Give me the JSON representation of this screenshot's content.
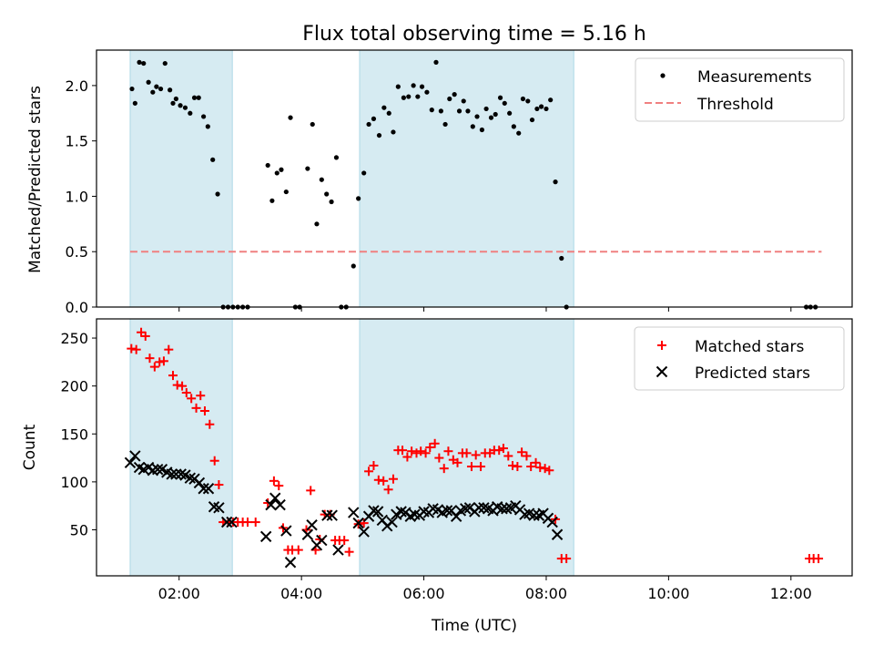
{
  "chart_data": {
    "type": "scatter",
    "title": "Flux total observing time = 5.16 h",
    "xlabel": "Time (UTC)",
    "x_unit": "hours UTC",
    "xlim": [
      0.65,
      13.0
    ],
    "xticks": [
      2,
      4,
      6,
      8,
      10,
      12
    ],
    "xtick_labels": [
      "02:00",
      "04:00",
      "06:00",
      "08:00",
      "10:00",
      "12:00"
    ],
    "shaded_intervals": [
      [
        1.2,
        2.87
      ],
      [
        4.95,
        8.45
      ]
    ],
    "shade_color": "#add8e6",
    "top": {
      "ylabel": "Matched/Predicted stars",
      "ylim": [
        0,
        2.32
      ],
      "yticks": [
        0.0,
        0.5,
        1.0,
        1.5,
        2.0
      ],
      "ytick_labels": [
        "0.0",
        "0.5",
        "1.0",
        "1.5",
        "2.0"
      ],
      "legend_position": "upper right",
      "threshold": {
        "name": "Threshold",
        "value": 0.5,
        "x_range": [
          1.2,
          12.5
        ],
        "color": "#f08080"
      },
      "measurements": {
        "name": "Measurements",
        "color": "#000000",
        "points": [
          [
            1.23,
            1.97
          ],
          [
            1.28,
            1.84
          ],
          [
            1.35,
            2.21
          ],
          [
            1.42,
            2.2
          ],
          [
            1.5,
            2.03
          ],
          [
            1.57,
            1.94
          ],
          [
            1.63,
            1.99
          ],
          [
            1.7,
            1.97
          ],
          [
            1.77,
            2.2
          ],
          [
            1.85,
            1.96
          ],
          [
            1.9,
            1.84
          ],
          [
            1.95,
            1.88
          ],
          [
            2.02,
            1.82
          ],
          [
            2.1,
            1.8
          ],
          [
            2.18,
            1.75
          ],
          [
            2.25,
            1.89
          ],
          [
            2.32,
            1.89
          ],
          [
            2.4,
            1.72
          ],
          [
            2.47,
            1.63
          ],
          [
            2.55,
            1.33
          ],
          [
            2.63,
            1.02
          ],
          [
            2.72,
            0.0
          ],
          [
            2.8,
            0.0
          ],
          [
            2.88,
            0.0
          ],
          [
            2.96,
            0.0
          ],
          [
            3.04,
            0.0
          ],
          [
            3.12,
            0.0
          ],
          [
            3.45,
            1.28
          ],
          [
            3.52,
            0.96
          ],
          [
            3.6,
            1.21
          ],
          [
            3.67,
            1.24
          ],
          [
            3.75,
            1.04
          ],
          [
            3.82,
            1.71
          ],
          [
            3.9,
            0.0
          ],
          [
            3.97,
            0.0
          ],
          [
            4.1,
            1.25
          ],
          [
            4.18,
            1.65
          ],
          [
            4.25,
            0.75
          ],
          [
            4.33,
            1.15
          ],
          [
            4.41,
            1.02
          ],
          [
            4.49,
            0.95
          ],
          [
            4.57,
            1.35
          ],
          [
            4.65,
            0.0
          ],
          [
            4.73,
            0.0
          ],
          [
            4.85,
            0.37
          ],
          [
            4.93,
            0.98
          ],
          [
            5.02,
            1.21
          ],
          [
            5.1,
            1.65
          ],
          [
            5.18,
            1.7
          ],
          [
            5.27,
            1.55
          ],
          [
            5.35,
            1.8
          ],
          [
            5.43,
            1.75
          ],
          [
            5.5,
            1.58
          ],
          [
            5.58,
            1.99
          ],
          [
            5.67,
            1.89
          ],
          [
            5.75,
            1.9
          ],
          [
            5.83,
            2.0
          ],
          [
            5.9,
            1.9
          ],
          [
            5.97,
            1.99
          ],
          [
            6.05,
            1.94
          ],
          [
            6.13,
            1.78
          ],
          [
            6.2,
            2.21
          ],
          [
            6.28,
            1.77
          ],
          [
            6.35,
            1.65
          ],
          [
            6.42,
            1.88
          ],
          [
            6.5,
            1.92
          ],
          [
            6.58,
            1.77
          ],
          [
            6.65,
            1.86
          ],
          [
            6.72,
            1.77
          ],
          [
            6.8,
            1.63
          ],
          [
            6.87,
            1.72
          ],
          [
            6.95,
            1.6
          ],
          [
            7.02,
            1.79
          ],
          [
            7.1,
            1.71
          ],
          [
            7.17,
            1.74
          ],
          [
            7.25,
            1.89
          ],
          [
            7.32,
            1.84
          ],
          [
            7.4,
            1.75
          ],
          [
            7.47,
            1.63
          ],
          [
            7.55,
            1.57
          ],
          [
            7.62,
            1.88
          ],
          [
            7.7,
            1.86
          ],
          [
            7.77,
            1.69
          ],
          [
            7.85,
            1.79
          ],
          [
            7.92,
            1.81
          ],
          [
            8.0,
            1.79
          ],
          [
            8.07,
            1.87
          ],
          [
            8.15,
            1.13
          ],
          [
            8.25,
            0.44
          ],
          [
            8.33,
            0.0
          ],
          [
            12.25,
            0.0
          ],
          [
            12.32,
            0.0
          ],
          [
            12.4,
            0.0
          ]
        ]
      }
    },
    "bottom": {
      "ylabel": "Count",
      "ylim": [
        2,
        270
      ],
      "yticks": [
        50,
        100,
        150,
        200,
        250
      ],
      "ytick_labels": [
        "50",
        "100",
        "150",
        "200",
        "250"
      ],
      "legend_position": "upper right",
      "series": [
        {
          "name": "Matched stars",
          "marker": "plus",
          "color": "#ff0000",
          "points": [
            [
              1.22,
              239
            ],
            [
              1.3,
              238
            ],
            [
              1.38,
              256
            ],
            [
              1.45,
              252
            ],
            [
              1.52,
              229
            ],
            [
              1.6,
              220
            ],
            [
              1.68,
              225
            ],
            [
              1.75,
              226
            ],
            [
              1.83,
              238
            ],
            [
              1.9,
              211
            ],
            [
              1.97,
              201
            ],
            [
              2.05,
              200
            ],
            [
              2.12,
              193
            ],
            [
              2.2,
              187
            ],
            [
              2.28,
              177
            ],
            [
              2.35,
              190
            ],
            [
              2.42,
              174
            ],
            [
              2.5,
              160
            ],
            [
              2.58,
              122
            ],
            [
              2.65,
              97
            ],
            [
              2.72,
              58
            ],
            [
              2.8,
              58
            ],
            [
              2.88,
              58
            ],
            [
              2.96,
              58
            ],
            [
              3.04,
              58
            ],
            [
              3.12,
              58
            ],
            [
              3.25,
              58
            ],
            [
              3.45,
              78
            ],
            [
              3.55,
              101
            ],
            [
              3.63,
              96
            ],
            [
              3.7,
              52
            ],
            [
              3.78,
              29
            ],
            [
              3.85,
              29
            ],
            [
              3.95,
              29
            ],
            [
              4.08,
              50
            ],
            [
              4.15,
              91
            ],
            [
              4.23,
              29
            ],
            [
              4.3,
              40
            ],
            [
              4.38,
              66
            ],
            [
              4.47,
              66
            ],
            [
              4.55,
              39
            ],
            [
              4.62,
              39
            ],
            [
              4.7,
              39
            ],
            [
              4.78,
              27
            ],
            [
              4.93,
              56
            ],
            [
              5.02,
              57
            ],
            [
              5.1,
              111
            ],
            [
              5.18,
              117
            ],
            [
              5.26,
              102
            ],
            [
              5.34,
              101
            ],
            [
              5.42,
              92
            ],
            [
              5.5,
              103
            ],
            [
              5.58,
              133
            ],
            [
              5.65,
              133
            ],
            [
              5.73,
              126
            ],
            [
              5.8,
              132
            ],
            [
              5.88,
              130
            ],
            [
              5.95,
              132
            ],
            [
              6.03,
              130
            ],
            [
              6.1,
              136
            ],
            [
              6.18,
              140
            ],
            [
              6.25,
              125
            ],
            [
              6.33,
              114
            ],
            [
              6.4,
              132
            ],
            [
              6.48,
              123
            ],
            [
              6.55,
              120
            ],
            [
              6.63,
              130
            ],
            [
              6.7,
              130
            ],
            [
              6.78,
              116
            ],
            [
              6.85,
              128
            ],
            [
              6.93,
              116
            ],
            [
              7.0,
              130
            ],
            [
              7.08,
              130
            ],
            [
              7.15,
              133
            ],
            [
              7.23,
              133
            ],
            [
              7.3,
              135
            ],
            [
              7.38,
              127
            ],
            [
              7.45,
              117
            ],
            [
              7.53,
              116
            ],
            [
              7.6,
              131
            ],
            [
              7.68,
              127
            ],
            [
              7.75,
              116
            ],
            [
              7.83,
              120
            ],
            [
              7.9,
              115
            ],
            [
              7.98,
              114
            ],
            [
              8.05,
              112
            ],
            [
              8.15,
              61
            ],
            [
              8.25,
              20
            ],
            [
              8.33,
              20
            ],
            [
              12.3,
              20
            ],
            [
              12.37,
              20
            ],
            [
              12.45,
              20
            ]
          ]
        },
        {
          "name": "Predicted stars",
          "marker": "x",
          "color": "#000000",
          "points": [
            [
              1.2,
              120
            ],
            [
              1.28,
              127
            ],
            [
              1.35,
              115
            ],
            [
              1.42,
              113
            ],
            [
              1.5,
              115
            ],
            [
              1.57,
              112
            ],
            [
              1.65,
              113
            ],
            [
              1.72,
              113
            ],
            [
              1.8,
              110
            ],
            [
              1.88,
              108
            ],
            [
              1.95,
              108
            ],
            [
              2.03,
              108
            ],
            [
              2.1,
              107
            ],
            [
              2.18,
              104
            ],
            [
              2.25,
              103
            ],
            [
              2.33,
              99
            ],
            [
              2.4,
              93
            ],
            [
              2.48,
              93
            ],
            [
              2.57,
              74
            ],
            [
              2.65,
              73
            ],
            [
              2.78,
              58
            ],
            [
              2.86,
              58
            ],
            [
              3.42,
              43
            ],
            [
              3.5,
              76
            ],
            [
              3.57,
              83
            ],
            [
              3.65,
              76
            ],
            [
              3.75,
              49
            ],
            [
              3.82,
              16
            ],
            [
              4.1,
              45
            ],
            [
              4.17,
              55
            ],
            [
              4.25,
              34
            ],
            [
              4.33,
              39
            ],
            [
              4.42,
              65
            ],
            [
              4.5,
              65
            ],
            [
              4.6,
              29
            ],
            [
              4.85,
              68
            ],
            [
              4.93,
              57
            ],
            [
              5.02,
              48
            ],
            [
              5.1,
              64
            ],
            [
              5.18,
              70
            ],
            [
              5.25,
              69
            ],
            [
              5.32,
              60
            ],
            [
              5.4,
              54
            ],
            [
              5.48,
              58
            ],
            [
              5.55,
              66
            ],
            [
              5.63,
              69
            ],
            [
              5.7,
              68
            ],
            [
              5.78,
              64
            ],
            [
              5.85,
              66
            ],
            [
              5.93,
              65
            ],
            [
              6.0,
              69
            ],
            [
              6.08,
              68
            ],
            [
              6.15,
              72
            ],
            [
              6.23,
              71
            ],
            [
              6.3,
              68
            ],
            [
              6.38,
              70
            ],
            [
              6.45,
              70
            ],
            [
              6.53,
              64
            ],
            [
              6.6,
              70
            ],
            [
              6.68,
              72
            ],
            [
              6.75,
              73
            ],
            [
              6.83,
              69
            ],
            [
              6.9,
              73
            ],
            [
              6.98,
              73
            ],
            [
              7.05,
              72
            ],
            [
              7.13,
              70
            ],
            [
              7.2,
              74
            ],
            [
              7.28,
              72
            ],
            [
              7.35,
              72
            ],
            [
              7.42,
              73
            ],
            [
              7.5,
              75
            ],
            [
              7.57,
              71
            ],
            [
              7.65,
              66
            ],
            [
              7.72,
              67
            ],
            [
              7.8,
              65
            ],
            [
              7.88,
              65
            ],
            [
              7.95,
              67
            ],
            [
              8.03,
              62
            ],
            [
              8.1,
              58
            ],
            [
              8.18,
              45
            ]
          ]
        }
      ]
    }
  }
}
